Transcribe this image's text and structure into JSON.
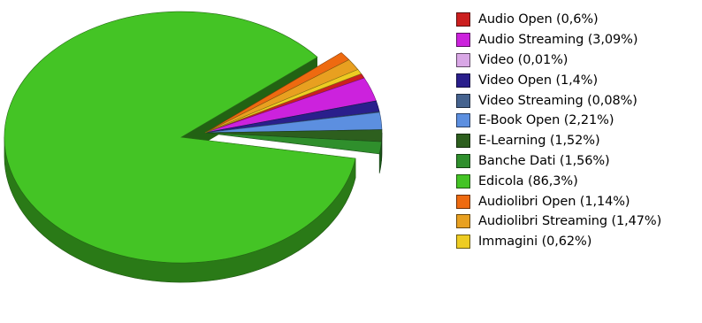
{
  "chart_data": {
    "type": "pie",
    "title": "",
    "legend_position": "right",
    "slices": [
      {
        "label": "Audio Open (0,6%)",
        "value": 0.6,
        "color": "#cc1f1f"
      },
      {
        "label": "Audio Streaming (3,09%)",
        "value": 3.09,
        "color": "#cc22dd"
      },
      {
        "label": "Video (0,01%)",
        "value": 0.01,
        "color": "#d9a7e6"
      },
      {
        "label": "Video Open (1,4%)",
        "value": 1.4,
        "color": "#2a1f8c"
      },
      {
        "label": "Video Streaming (0,08%)",
        "value": 0.08,
        "color": "#45638f"
      },
      {
        "label": "E-Book Open (2,21%)",
        "value": 2.21,
        "color": "#5c8fe0"
      },
      {
        "label": "E-Learning (1,52%)",
        "value": 1.52,
        "color": "#2d5f1e"
      },
      {
        "label": "Banche Dati (1,56%)",
        "value": 1.56,
        "color": "#2f8f2c"
      },
      {
        "label": "Edicola (86,3%)",
        "value": 86.3,
        "color": "#44c425"
      },
      {
        "label": "Audiolibri Open (1,14%)",
        "value": 1.14,
        "color": "#ee6a10"
      },
      {
        "label": "Audiolibri Streaming (1,47%)",
        "value": 1.47,
        "color": "#e8a020"
      },
      {
        "label": "Immagini (0,62%)",
        "value": 0.62,
        "color": "#eecc22"
      }
    ]
  }
}
